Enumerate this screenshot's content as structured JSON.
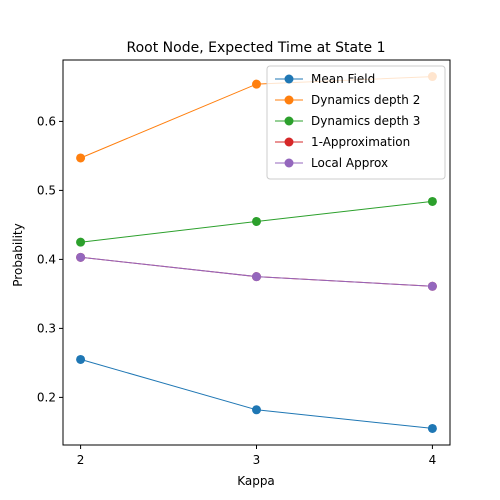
{
  "chart_data": {
    "type": "line",
    "title": "Root Node, Expected Time at State 1",
    "xlabel": "Kappa",
    "ylabel": "Probability",
    "x": [
      2,
      3,
      4
    ],
    "x_ticks": [
      "2",
      "3",
      "4"
    ],
    "xlim": [
      1.9,
      4.1
    ],
    "y_ticks": [
      "0.2",
      "0.3",
      "0.4",
      "0.5",
      "0.6"
    ],
    "y_tick_values": [
      0.2,
      0.3,
      0.4,
      0.5,
      0.6
    ],
    "ylim": [
      0.131,
      0.689
    ],
    "grid": false,
    "legend_position": "top-right",
    "series": [
      {
        "name": "Mean Field",
        "color": "#1f77b4",
        "values": [
          0.255,
          0.182,
          0.155
        ]
      },
      {
        "name": "Dynamics depth 2",
        "color": "#ff7f0e",
        "values": [
          0.547,
          0.654,
          0.665
        ]
      },
      {
        "name": "Dynamics depth 3",
        "color": "#2ca02c",
        "values": [
          0.425,
          0.455,
          0.484
        ]
      },
      {
        "name": "1-Approximation",
        "color": "#d62728",
        "values": [
          0.403,
          0.375,
          0.361
        ]
      },
      {
        "name": "Local Approx",
        "color": "#9467bd",
        "values": [
          0.403,
          0.375,
          0.361
        ]
      }
    ]
  }
}
